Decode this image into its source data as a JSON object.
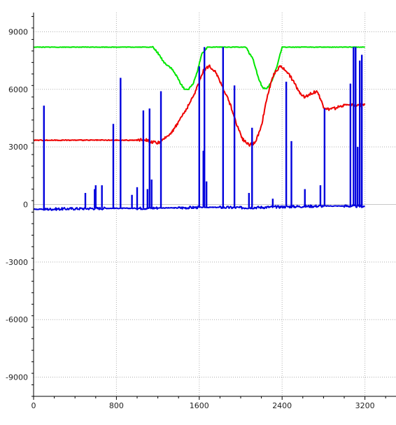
{
  "chart_data": {
    "type": "line",
    "title": "",
    "xlabel": "",
    "ylabel": "",
    "xlim": [
      0,
      3500
    ],
    "ylim": [
      -10000,
      10000
    ],
    "grid": true,
    "legend": "none",
    "x_ticks": [
      0,
      800,
      1600,
      2400,
      3200
    ],
    "x_tick_labels": [
      "0",
      "800",
      "1600",
      "2400",
      "3200"
    ],
    "y_ticks": [
      9000,
      6000,
      3000,
      0,
      -3000,
      -6000,
      -9000
    ],
    "y_tick_labels": [
      "9000",
      "6000",
      "3000",
      "0",
      "-3000",
      "-6000",
      "-9000"
    ],
    "colors": {
      "axis": "#000000",
      "grid": "#b0b0b0",
      "zero_line": "#c8c8c8",
      "green_series": "#00e600",
      "red_series": "#ee0000",
      "blue_series": "#0000dd"
    },
    "series": [
      {
        "color": "green",
        "x": [
          0,
          1100,
          1150,
          1200,
          1260,
          1330,
          1380,
          1420,
          1460,
          1500,
          1540,
          1580,
          1620,
          1680,
          1750,
          1850,
          1950,
          2050,
          2080,
          2110,
          2140,
          2170,
          2210,
          2250,
          2300,
          2350,
          2400,
          2600,
          3000,
          3200
        ],
        "y": [
          8200,
          8200,
          8200,
          7900,
          7400,
          7100,
          6700,
          6300,
          6000,
          6000,
          6300,
          6900,
          7800,
          8200,
          8200,
          8200,
          8200,
          8200,
          7900,
          7700,
          7200,
          6600,
          6100,
          6000,
          6400,
          7200,
          8200,
          8200,
          8200,
          8200
        ]
      },
      {
        "color": "red",
        "x": [
          0,
          200,
          400,
          600,
          800,
          1000,
          1060,
          1100,
          1140,
          1200,
          1240,
          1300,
          1360,
          1420,
          1480,
          1540,
          1600,
          1640,
          1700,
          1760,
          1820,
          1900,
          1960,
          2020,
          2080,
          2140,
          2200,
          2260,
          2320,
          2380,
          2440,
          2500,
          2560,
          2620,
          2680,
          2740,
          2800,
          2840,
          2900,
          2960,
          3000,
          3060,
          3120,
          3200
        ],
        "y": [
          3350,
          3350,
          3350,
          3350,
          3350,
          3350,
          3400,
          3350,
          3250,
          3200,
          3300,
          3600,
          3950,
          4500,
          5000,
          5600,
          6400,
          7000,
          7200,
          6900,
          6200,
          5200,
          4200,
          3400,
          3100,
          3200,
          4100,
          5700,
          6800,
          7200,
          7000,
          6500,
          5900,
          5600,
          5800,
          5900,
          5100,
          4950,
          5000,
          5100,
          5200,
          5200,
          5150,
          5200
        ]
      },
      {
        "color": "blue",
        "x": [
          0,
          100,
          400,
          700,
          1000,
          1200,
          1400,
          1600,
          1800,
          2000,
          2200,
          2400,
          2600,
          2800,
          3000,
          3200
        ],
        "y": [
          -250,
          -250,
          -220,
          -200,
          -200,
          -180,
          -180,
          -150,
          -150,
          -170,
          -150,
          -120,
          -100,
          -80,
          -80,
          -100
        ],
        "spikes": [
          {
            "x": 100,
            "y": 5150
          },
          {
            "x": 500,
            "y": 600
          },
          {
            "x": 590,
            "y": 800
          },
          {
            "x": 600,
            "y": 1000
          },
          {
            "x": 660,
            "y": 1000
          },
          {
            "x": 770,
            "y": 4200
          },
          {
            "x": 840,
            "y": 6600
          },
          {
            "x": 950,
            "y": 500
          },
          {
            "x": 1000,
            "y": 900
          },
          {
            "x": 1060,
            "y": 4900
          },
          {
            "x": 1100,
            "y": 800
          },
          {
            "x": 1120,
            "y": 5000
          },
          {
            "x": 1140,
            "y": 1300
          },
          {
            "x": 1230,
            "y": 5900
          },
          {
            "x": 1600,
            "y": 7200
          },
          {
            "x": 1640,
            "y": 2800
          },
          {
            "x": 1650,
            "y": 8200
          },
          {
            "x": 1670,
            "y": 1200
          },
          {
            "x": 1830,
            "y": 8200
          },
          {
            "x": 1940,
            "y": 6200
          },
          {
            "x": 2080,
            "y": 600
          },
          {
            "x": 2110,
            "y": 4000
          },
          {
            "x": 2310,
            "y": 300
          },
          {
            "x": 2440,
            "y": 6400
          },
          {
            "x": 2490,
            "y": 3300
          },
          {
            "x": 2620,
            "y": 800
          },
          {
            "x": 2770,
            "y": 1000
          },
          {
            "x": 2810,
            "y": 5000
          },
          {
            "x": 3060,
            "y": 6300
          },
          {
            "x": 3090,
            "y": 8200
          },
          {
            "x": 3110,
            "y": 8200
          },
          {
            "x": 3130,
            "y": 3000
          },
          {
            "x": 3150,
            "y": 7500
          },
          {
            "x": 3170,
            "y": 7800
          }
        ]
      }
    ]
  }
}
